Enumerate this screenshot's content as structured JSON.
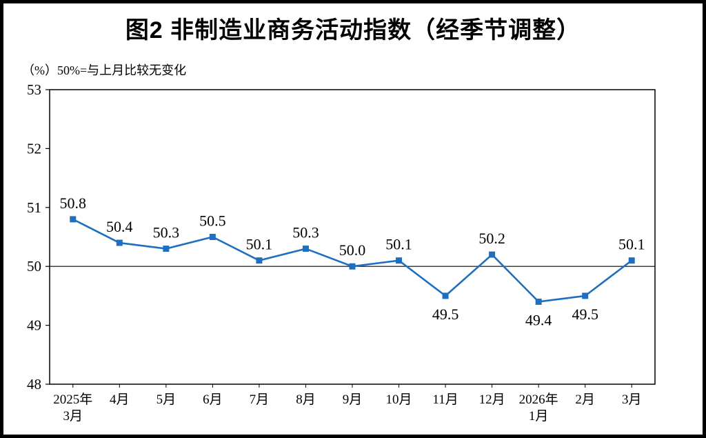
{
  "title": "图2  非制造业商务活动指数（经季节调整）",
  "unit_note": "（%）50%=与上月比较无变化",
  "chart_data": {
    "type": "line",
    "title": "图2 非制造业商务活动指数（经季节调整）",
    "xlabel": "",
    "ylabel": "%",
    "categories": [
      "2025年\n3月",
      "4月",
      "5月",
      "6月",
      "7月",
      "8月",
      "9月",
      "10月",
      "11月",
      "12月",
      "2026年\n1月",
      "2月",
      "3月"
    ],
    "values": [
      50.8,
      50.4,
      50.3,
      50.5,
      50.1,
      50.3,
      50.0,
      50.1,
      49.5,
      50.2,
      49.4,
      49.5,
      50.1
    ],
    "ylim": [
      48,
      53
    ],
    "ytick_step": 1,
    "reference_line": 50,
    "line_color": "#1f6fc0",
    "marker": "square",
    "grid": false,
    "legend_position": "none",
    "data_labels": true
  }
}
